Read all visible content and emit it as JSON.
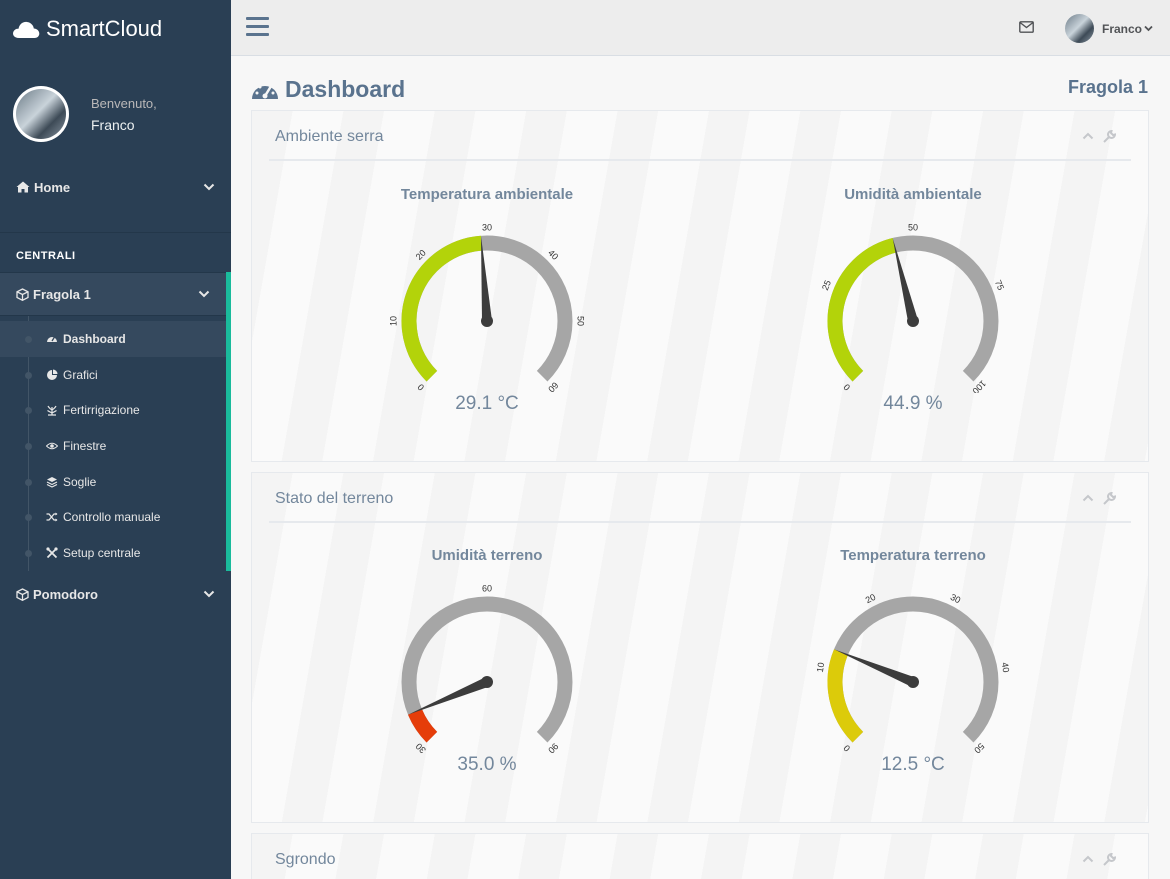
{
  "app": {
    "brand": "SmartCloud"
  },
  "profile": {
    "welcome": "Benvenuto,",
    "name": "Franco"
  },
  "sidebar": {
    "home_label": "Home",
    "section_title": "CENTRALI",
    "group_label": "Fragola 1",
    "items": [
      {
        "label": "Dashboard",
        "icon": "tachometer-icon"
      },
      {
        "label": "Grafici",
        "icon": "pie-chart-icon"
      },
      {
        "label": "Fertirrigazione",
        "icon": "plant-icon"
      },
      {
        "label": "Finestre",
        "icon": "eye-icon"
      },
      {
        "label": "Soglie",
        "icon": "layers-icon"
      },
      {
        "label": "Controllo manuale",
        "icon": "random-icon"
      },
      {
        "label": "Setup centrale",
        "icon": "tools-icon"
      }
    ],
    "pomodoro_label": "Pomodoro"
  },
  "topnav": {
    "user_name": "Franco"
  },
  "main": {
    "title": "Dashboard",
    "central_name": "Fragola 1",
    "panels": [
      {
        "title": "Ambiente serra",
        "gauges": [
          {
            "title": "Temperatura ambientale",
            "min": 0,
            "max": 60,
            "value": 29.1,
            "display": "29.1 °C",
            "ticks": [
              0,
              10,
              20,
              30,
              40,
              50,
              60
            ],
            "fill": "#b3d30a",
            "fill_range": [
              0,
              29.1
            ]
          },
          {
            "title": "Umidità ambientale",
            "min": 0,
            "max": 100,
            "value": 44.9,
            "display": "44.9 %",
            "ticks": [
              0,
              25,
              50,
              75,
              100
            ],
            "fill": "#b3d30a",
            "fill_range": [
              0,
              44.9
            ]
          }
        ]
      },
      {
        "title": "Stato del terreno",
        "gauges": [
          {
            "title": "Umidità terreno",
            "min": 30,
            "max": 90,
            "value": 35.0,
            "display": "35.0 %",
            "ticks": [
              30,
              60,
              90
            ],
            "fill": "#e53d0a",
            "fill_range": [
              30,
              35.0
            ]
          },
          {
            "title": "Temperatura terreno",
            "min": 0,
            "max": 50,
            "value": 12.5,
            "display": "12.5 °C",
            "ticks": [
              0,
              10,
              20,
              30,
              40,
              50
            ],
            "fill": "#dccb0a",
            "fill_range": [
              0,
              12.5
            ]
          }
        ]
      },
      {
        "title": "Sgrondo",
        "gauges": []
      }
    ]
  },
  "colors": {
    "sidebar": "#2a3f54",
    "accent": "#1abb9c",
    "gauge_track": "#a6a6a6",
    "needle": "#3c3c3c"
  }
}
